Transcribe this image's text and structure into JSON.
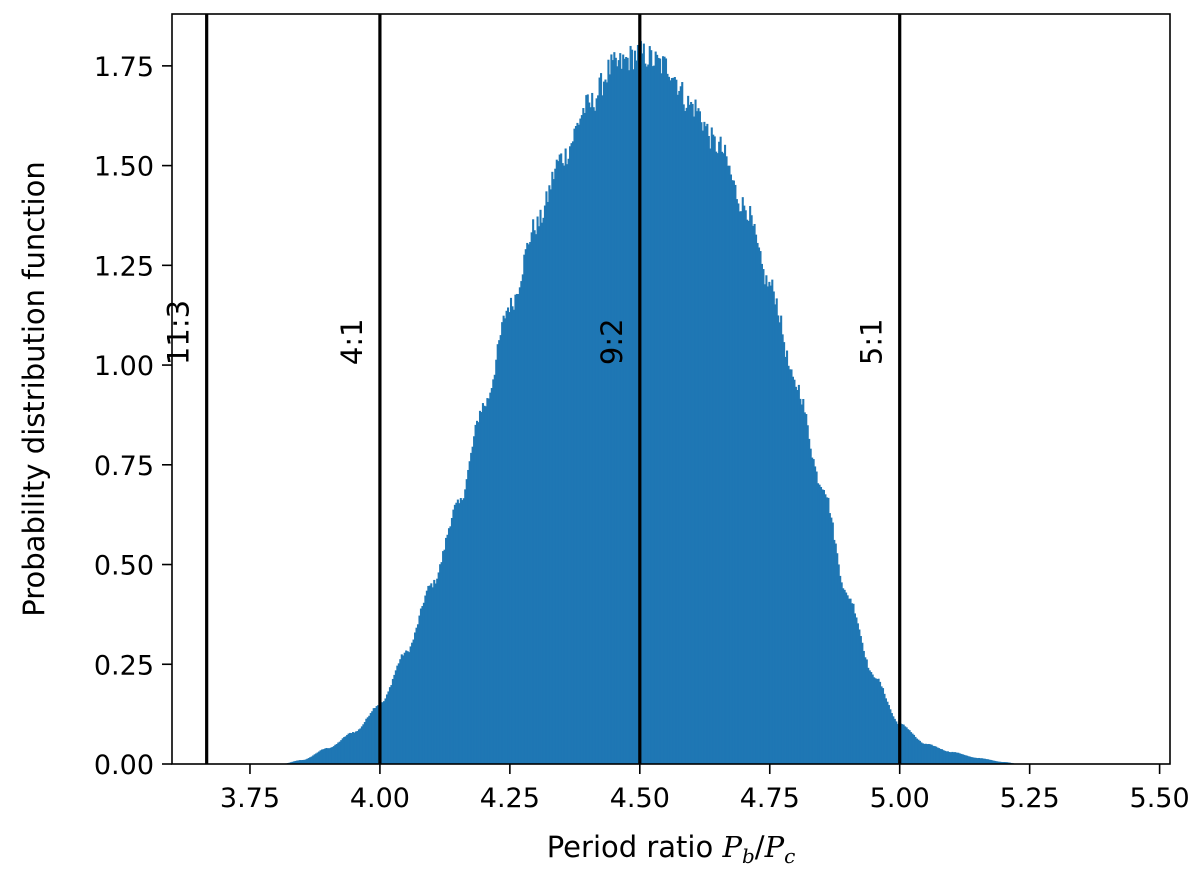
{
  "chart_data": {
    "type": "histogram",
    "title": "",
    "xlabel_prefix": "Period ratio ",
    "xlabel_math": "P_b/P_c",
    "ylabel": "Probability distribution function",
    "xlim": [
      3.6,
      5.52
    ],
    "ylim": [
      0,
      1.88
    ],
    "xticks": [
      3.75,
      4.0,
      4.25,
      4.5,
      4.75,
      5.0,
      5.25,
      5.5
    ],
    "xtick_labels": [
      "3.75",
      "4.00",
      "4.25",
      "4.50",
      "4.75",
      "5.00",
      "5.25",
      "5.50"
    ],
    "yticks": [
      0,
      0.25,
      0.5,
      0.75,
      1.0,
      1.25,
      1.5,
      1.75
    ],
    "ytick_labels": [
      "0.00",
      "0.25",
      "0.50",
      "0.75",
      "1.00",
      "1.25",
      "1.50",
      "1.75"
    ],
    "bar_color": "#1f77b4",
    "distribution": {
      "support": [
        3.81,
        5.23
      ],
      "density_points": [
        [
          3.81,
          0.0
        ],
        [
          3.85,
          0.01
        ],
        [
          3.9,
          0.04
        ],
        [
          3.95,
          0.08
        ],
        [
          4.0,
          0.15
        ],
        [
          4.05,
          0.28
        ],
        [
          4.1,
          0.45
        ],
        [
          4.15,
          0.65
        ],
        [
          4.2,
          0.9
        ],
        [
          4.25,
          1.15
        ],
        [
          4.3,
          1.35
        ],
        [
          4.35,
          1.52
        ],
        [
          4.4,
          1.65
        ],
        [
          4.45,
          1.75
        ],
        [
          4.5,
          1.78
        ],
        [
          4.55,
          1.75
        ],
        [
          4.6,
          1.65
        ],
        [
          4.65,
          1.55
        ],
        [
          4.7,
          1.4
        ],
        [
          4.75,
          1.2
        ],
        [
          4.8,
          0.95
        ],
        [
          4.85,
          0.7
        ],
        [
          4.9,
          0.42
        ],
        [
          4.95,
          0.22
        ],
        [
          5.0,
          0.1
        ],
        [
          5.05,
          0.05
        ],
        [
          5.1,
          0.03
        ],
        [
          5.15,
          0.015
        ],
        [
          5.2,
          0.005
        ],
        [
          5.23,
          0.0
        ]
      ]
    },
    "vertical_lines": [
      {
        "x": 3.6667,
        "label": "11:3"
      },
      {
        "x": 4.0,
        "label": "4:1"
      },
      {
        "x": 4.5,
        "label": "9:2"
      },
      {
        "x": 5.0,
        "label": "5:1"
      }
    ],
    "vline_color": "#000000",
    "grid": false,
    "legend": "none"
  }
}
